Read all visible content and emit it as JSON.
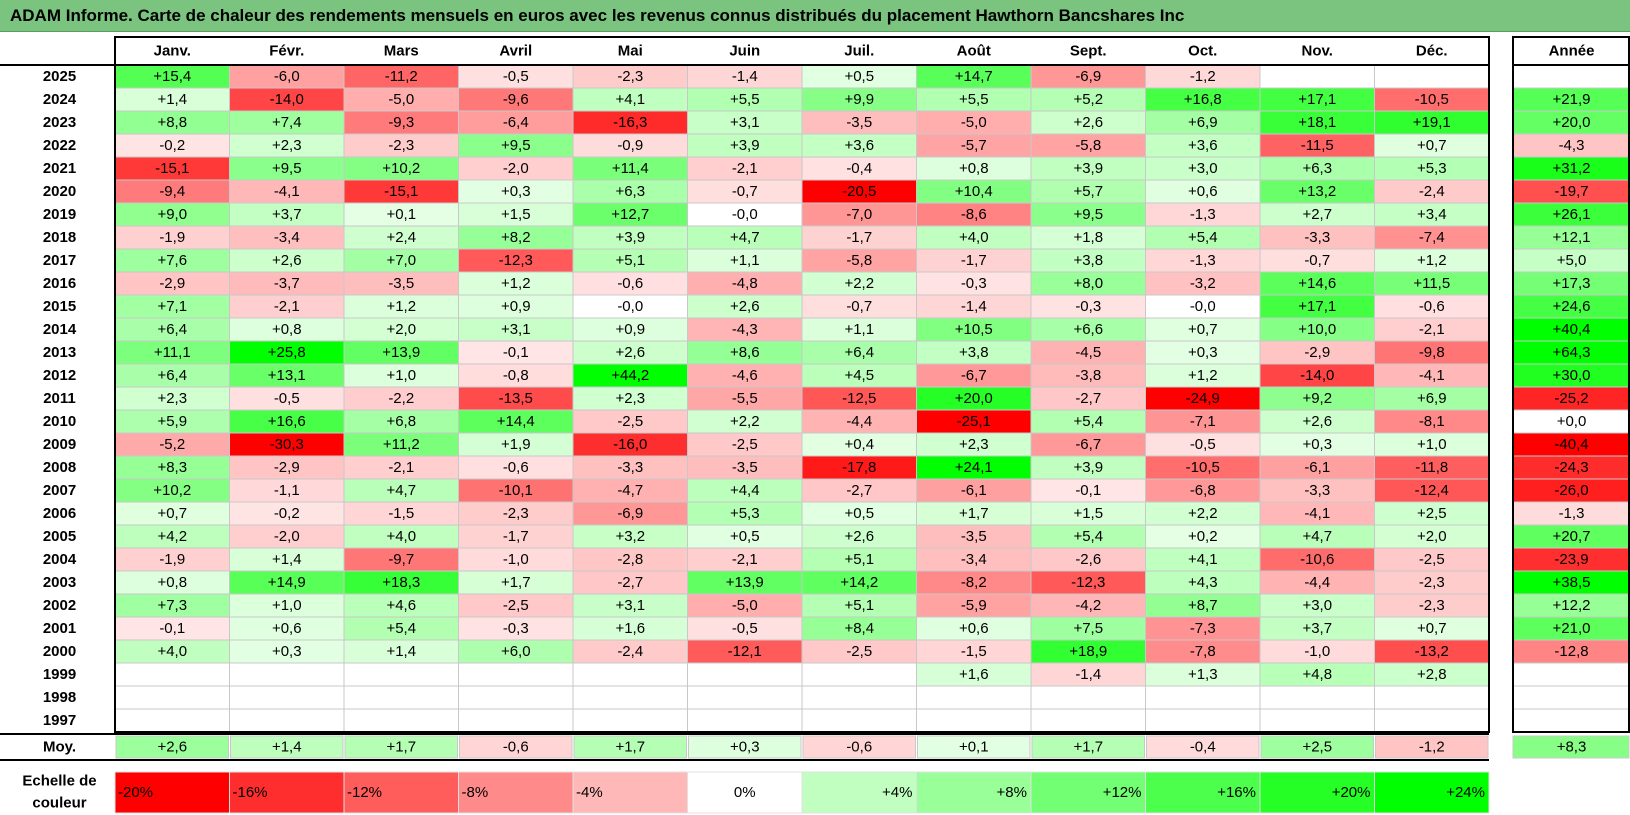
{
  "title": "ADAM Informe. Carte de chaleur des rendements mensuels en euros avec les revenus connus distribués du placement Hawthorn Bancshares Inc",
  "chart_data": {
    "type": "heatmap",
    "title": "ADAM Informe. Carte de chaleur des rendements mensuels en euros avec les revenus connus distribués du placement Hawthorn Bancshares Inc",
    "columns": [
      "Janv.",
      "Févr.",
      "Mars",
      "Avril",
      "Mai",
      "Juin",
      "Juil.",
      "Août",
      "Sept.",
      "Oct.",
      "Nov.",
      "Déc."
    ],
    "year_column_label": "Année",
    "years": [
      "2025",
      "2024",
      "2023",
      "2022",
      "2021",
      "2020",
      "2019",
      "2018",
      "2017",
      "2016",
      "2015",
      "2014",
      "2013",
      "2012",
      "2011",
      "2010",
      "2009",
      "2008",
      "2007",
      "2006",
      "2005",
      "2004",
      "2003",
      "2002",
      "2001",
      "2000",
      "1999",
      "1998",
      "1997"
    ],
    "values": [
      [
        "+15,4",
        "-6,0",
        "-11,2",
        "-0,5",
        "-2,3",
        "-1,4",
        "+0,5",
        "+14,7",
        "-6,9",
        "-1,2",
        "",
        ""
      ],
      [
        "+1,4",
        "-14,0",
        "-5,0",
        "-9,6",
        "+4,1",
        "+5,5",
        "+9,9",
        "+5,5",
        "+5,2",
        "+16,8",
        "+17,1",
        "-10,5"
      ],
      [
        "+8,8",
        "+7,4",
        "-9,3",
        "-6,4",
        "-16,3",
        "+3,1",
        "-3,5",
        "-5,0",
        "+2,6",
        "+6,9",
        "+18,1",
        "+19,1"
      ],
      [
        "-0,2",
        "+2,3",
        "-2,3",
        "+9,5",
        "-0,9",
        "+3,9",
        "+3,6",
        "-5,7",
        "-5,8",
        "+3,6",
        "-11,5",
        "+0,7"
      ],
      [
        "-15,1",
        "+9,5",
        "+10,2",
        "-2,0",
        "+11,4",
        "-2,1",
        "-0,4",
        "+0,8",
        "+3,9",
        "+3,0",
        "+6,3",
        "+5,3"
      ],
      [
        "-9,4",
        "-4,1",
        "-15,1",
        "+0,3",
        "+6,3",
        "-0,7",
        "-20,5",
        "+10,4",
        "+5,7",
        "+0,6",
        "+13,2",
        "-2,4"
      ],
      [
        "+9,0",
        "+3,7",
        "+0,1",
        "+1,5",
        "+12,7",
        "-0,0",
        "-7,0",
        "-8,6",
        "+9,5",
        "-1,3",
        "+2,7",
        "+3,4"
      ],
      [
        "-1,9",
        "-3,4",
        "+2,4",
        "+8,2",
        "+3,9",
        "+4,7",
        "-1,7",
        "+4,0",
        "+1,8",
        "+5,4",
        "-3,3",
        "-7,4"
      ],
      [
        "+7,6",
        "+2,6",
        "+7,0",
        "-12,3",
        "+5,1",
        "+1,1",
        "-5,8",
        "-1,7",
        "+3,8",
        "-1,3",
        "-0,7",
        "+1,2"
      ],
      [
        "-2,9",
        "-3,7",
        "-3,5",
        "+1,2",
        "-0,6",
        "-4,8",
        "+2,2",
        "-0,3",
        "+8,0",
        "-3,2",
        "+14,6",
        "+11,5"
      ],
      [
        "+7,1",
        "-2,1",
        "+1,2",
        "+0,9",
        "-0,0",
        "+2,6",
        "-0,7",
        "-1,4",
        "-0,3",
        "-0,0",
        "+17,1",
        "-0,6"
      ],
      [
        "+6,4",
        "+0,8",
        "+2,0",
        "+3,1",
        "+0,9",
        "-4,3",
        "+1,1",
        "+10,5",
        "+6,6",
        "+0,7",
        "+10,0",
        "-2,1"
      ],
      [
        "+11,1",
        "+25,8",
        "+13,9",
        "-0,1",
        "+2,6",
        "+8,6",
        "+6,4",
        "+3,8",
        "-4,5",
        "+0,3",
        "-2,9",
        "-9,8"
      ],
      [
        "+6,4",
        "+13,1",
        "+1,0",
        "-0,8",
        "+44,2",
        "-4,6",
        "+4,5",
        "-6,7",
        "-3,8",
        "+1,2",
        "-14,0",
        "-4,1"
      ],
      [
        "+2,3",
        "-0,5",
        "-2,2",
        "-13,5",
        "+2,3",
        "-5,5",
        "-12,5",
        "+20,0",
        "-2,7",
        "-24,9",
        "+9,2",
        "+6,9"
      ],
      [
        "+5,9",
        "+16,6",
        "+6,8",
        "+14,4",
        "-2,5",
        "+2,2",
        "-4,4",
        "-25,1",
        "+5,4",
        "-7,1",
        "+2,6",
        "-8,1"
      ],
      [
        "-5,2",
        "-30,3",
        "+11,2",
        "+1,9",
        "-16,0",
        "-2,5",
        "+0,4",
        "+2,3",
        "-6,7",
        "-0,5",
        "+0,3",
        "+1,0"
      ],
      [
        "+8,3",
        "-2,9",
        "-2,1",
        "-0,6",
        "-3,3",
        "-3,5",
        "-17,8",
        "+24,1",
        "+3,9",
        "-10,5",
        "-6,1",
        "-11,8"
      ],
      [
        "+10,2",
        "-1,1",
        "+4,7",
        "-10,1",
        "-4,7",
        "+4,4",
        "-2,7",
        "-6,1",
        "-0,1",
        "-6,8",
        "-3,3",
        "-12,4"
      ],
      [
        "+0,7",
        "-0,2",
        "-1,5",
        "-2,3",
        "-6,9",
        "+5,3",
        "+0,5",
        "+1,7",
        "+1,5",
        "+2,2",
        "-4,1",
        "+2,5"
      ],
      [
        "+4,2",
        "-2,0",
        "+4,0",
        "-1,7",
        "+3,2",
        "+0,5",
        "+2,6",
        "-3,5",
        "+5,4",
        "+0,2",
        "+4,7",
        "+2,0"
      ],
      [
        "-1,9",
        "+1,4",
        "-9,7",
        "-1,0",
        "-2,8",
        "-2,1",
        "+5,1",
        "-3,4",
        "-2,6",
        "+4,1",
        "-10,6",
        "-2,5"
      ],
      [
        "+0,8",
        "+14,9",
        "+18,3",
        "+1,7",
        "-2,7",
        "+13,9",
        "+14,2",
        "-8,2",
        "-12,3",
        "+4,3",
        "-4,4",
        "-2,3"
      ],
      [
        "+7,3",
        "+1,0",
        "+4,6",
        "-2,5",
        "+3,1",
        "-5,0",
        "+5,1",
        "-5,9",
        "-4,2",
        "+8,7",
        "+3,0",
        "-2,3"
      ],
      [
        "-0,1",
        "+0,6",
        "+5,4",
        "-0,3",
        "+1,6",
        "-0,5",
        "+8,4",
        "+0,6",
        "+7,5",
        "-7,3",
        "+3,7",
        "+0,7"
      ],
      [
        "+4,0",
        "+0,3",
        "+1,4",
        "+6,0",
        "-2,4",
        "-12,1",
        "-2,5",
        "-1,5",
        "+18,9",
        "-7,8",
        "-1,0",
        "-13,2"
      ],
      [
        "",
        "",
        "",
        "",
        "",
        "",
        "",
        "+1,6",
        "-1,4",
        "+1,3",
        "+4,8",
        "+2,8"
      ],
      [
        "",
        "",
        "",
        "",
        "",
        "",
        "",
        "",
        "",
        "",
        "",
        ""
      ],
      [
        "",
        "",
        "",
        "",
        "",
        "",
        "",
        "",
        "",
        "",
        "",
        ""
      ]
    ],
    "annual": [
      "",
      "+21,9",
      "+20,0",
      "-4,3",
      "+31,2",
      "-19,7",
      "+26,1",
      "+12,1",
      "+5,0",
      "+17,3",
      "+24,6",
      "+40,4",
      "+64,3",
      "+30,0",
      "-25,2",
      "+0,0",
      "-40,4",
      "-24,3",
      "-26,0",
      "-1,3",
      "+20,7",
      "-23,9",
      "+38,5",
      "+12,2",
      "+21,0",
      "-12,8",
      "",
      "",
      ""
    ],
    "average_label": "Moy.",
    "average": [
      "+2,6",
      "+1,4",
      "+1,7",
      "-0,6",
      "+1,7",
      "+0,3",
      "-0,6",
      "+0,1",
      "+1,7",
      "-0,4",
      "+2,5",
      "-1,2"
    ],
    "average_annual": "+8,3",
    "scale_label": "Echelle de couleur",
    "scale_labels": [
      "-20%",
      "-16%",
      "-12%",
      "-8%",
      "-4%",
      "0%",
      "+4%",
      "+8%",
      "+12%",
      "+16%",
      "+20%",
      "+24%"
    ],
    "scale_values": [
      -20,
      -16,
      -12,
      -8,
      -4,
      0,
      4,
      8,
      12,
      16,
      20,
      24
    ],
    "colors": {
      "neg_max": "#ff0000",
      "neg_light": "#ffe6e6",
      "pos_light": "#e6ffe6",
      "pos_max": "#00ff00",
      "title_bar": "#7ac47f"
    }
  }
}
